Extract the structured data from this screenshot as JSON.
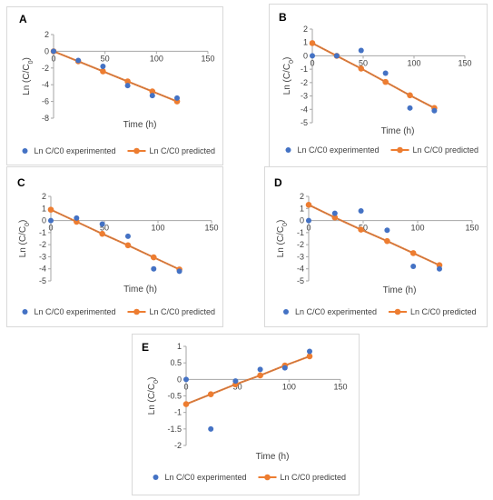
{
  "colors": {
    "experimented": "#4472c4",
    "predicted": "#ed7d31",
    "axis": "#a6a6a6",
    "text": "#404040"
  },
  "legend": {
    "experimented": "Ln C/C0 experimented",
    "predicted": "Ln C/C0 predicted"
  },
  "chart_data": [
    {
      "panel": "A",
      "type": "scatter",
      "xlabel": "Time (h)",
      "ylabel_main": "Ln (C/C",
      "ylabel_sub": "0",
      "ylabel_end": ")",
      "xlim": [
        0,
        150
      ],
      "ylim": [
        -8,
        2
      ],
      "xticks": [
        "0",
        "50",
        "100",
        "150"
      ],
      "yticks": [
        "2",
        "0",
        "-2",
        "-4",
        "-6",
        "-8"
      ],
      "legend_position": "bottom",
      "series": [
        {
          "name": "Ln C/C0 experimented",
          "kind": "points",
          "x": [
            0,
            24,
            48,
            72,
            96,
            120
          ],
          "y": [
            0,
            -1.1,
            -1.8,
            -4.1,
            -5.3,
            -5.6
          ]
        },
        {
          "name": "Ln C/C0 predicted",
          "kind": "line",
          "x": [
            0,
            24,
            48,
            72,
            96,
            120
          ],
          "y": [
            0,
            -1.2,
            -2.4,
            -3.6,
            -4.8,
            -6.0
          ]
        }
      ]
    },
    {
      "panel": "B",
      "type": "scatter",
      "xlabel": "Time (h)",
      "ylabel_main": "Ln (C/C",
      "ylabel_sub": "0",
      "ylabel_end": ")",
      "xlim": [
        0,
        150
      ],
      "ylim": [
        -5,
        2
      ],
      "xticks": [
        "0",
        "50",
        "100",
        "150"
      ],
      "yticks": [
        "2",
        "1",
        "0",
        "-1",
        "-2",
        "-3",
        "-4",
        "-5"
      ],
      "legend_position": "bottom",
      "series": [
        {
          "name": "Ln C/C0 experimented",
          "kind": "points",
          "x": [
            0,
            24,
            48,
            72,
            96,
            120
          ],
          "y": [
            0,
            0,
            0.4,
            -1.3,
            -3.9,
            -4.1
          ]
        },
        {
          "name": "Ln C/C0 predicted",
          "kind": "line",
          "x": [
            0,
            24,
            48,
            72,
            96,
            120
          ],
          "y": [
            0.95,
            0.0,
            -0.95,
            -1.95,
            -2.95,
            -3.9
          ]
        }
      ]
    },
    {
      "panel": "C",
      "type": "scatter",
      "xlabel": "Time (h)",
      "ylabel_main": "Ln (C/C",
      "ylabel_sub": "0",
      "ylabel_end": ")",
      "xlim": [
        0,
        150
      ],
      "ylim": [
        -5,
        2
      ],
      "xticks": [
        "0",
        "50",
        "100",
        "150"
      ],
      "yticks": [
        "2",
        "1",
        "0",
        "-1",
        "-2",
        "-3",
        "-4",
        "-5"
      ],
      "legend_position": "bottom",
      "series": [
        {
          "name": "Ln C/C0 experimented",
          "kind": "points",
          "x": [
            0,
            24,
            48,
            72,
            96,
            120
          ],
          "y": [
            0,
            0.2,
            -0.3,
            -1.3,
            -4.0,
            -4.2
          ]
        },
        {
          "name": "Ln C/C0 predicted",
          "kind": "line",
          "x": [
            0,
            24,
            48,
            72,
            96,
            120
          ],
          "y": [
            0.9,
            -0.1,
            -1.1,
            -2.05,
            -3.05,
            -4.05
          ]
        }
      ]
    },
    {
      "panel": "D",
      "type": "scatter",
      "xlabel": "Time (h)",
      "ylabel_main": "Ln (C/C",
      "ylabel_sub": "0",
      "ylabel_end": ")",
      "xlim": [
        0,
        150
      ],
      "ylim": [
        -5,
        2
      ],
      "xticks": [
        "0",
        "50",
        "100",
        "150"
      ],
      "yticks": [
        "2",
        "1",
        "0",
        "-1",
        "-2",
        "-3",
        "-4",
        "-5"
      ],
      "legend_position": "bottom",
      "series": [
        {
          "name": "Ln C/C0 experimented",
          "kind": "points",
          "x": [
            0,
            24,
            48,
            72,
            96,
            120
          ],
          "y": [
            0,
            0.6,
            0.8,
            -0.8,
            -3.8,
            -4.0
          ]
        },
        {
          "name": "Ln C/C0 predicted",
          "kind": "line",
          "x": [
            0,
            24,
            48,
            72,
            96,
            120
          ],
          "y": [
            1.3,
            0.25,
            -0.75,
            -1.7,
            -2.7,
            -3.7
          ]
        }
      ]
    },
    {
      "panel": "E",
      "type": "scatter",
      "xlabel": "Time (h)",
      "ylabel_main": "Ln (C/C",
      "ylabel_sub": "0",
      "ylabel_end": ")",
      "xlim": [
        0,
        150
      ],
      "ylim": [
        -2,
        1
      ],
      "xticks": [
        "0",
        "50",
        "100",
        "150"
      ],
      "yticks": [
        "1",
        "0.5",
        "0",
        "-0.5",
        "-1",
        "-1.5",
        "-2"
      ],
      "legend_position": "bottom",
      "series": [
        {
          "name": "Ln C/C0 experimented",
          "kind": "points",
          "x": [
            0,
            24,
            48,
            72,
            96,
            120
          ],
          "y": [
            0,
            -1.5,
            -0.05,
            0.3,
            0.35,
            0.85
          ]
        },
        {
          "name": "Ln C/C0 predicted",
          "kind": "line",
          "x": [
            0,
            24,
            48,
            72,
            96,
            120
          ],
          "y": [
            -0.75,
            -0.45,
            -0.15,
            0.12,
            0.42,
            0.7
          ]
        }
      ]
    }
  ]
}
